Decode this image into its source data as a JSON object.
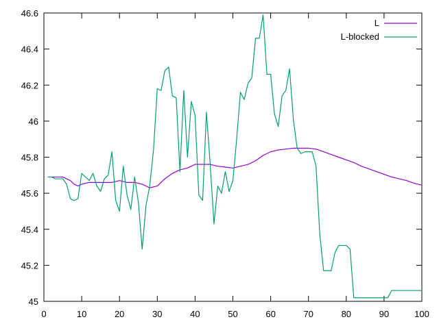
{
  "chart_data": {
    "type": "line",
    "title": "",
    "xlabel": "",
    "ylabel": "",
    "xlim": [
      0,
      100
    ],
    "ylim": [
      45,
      46.6
    ],
    "xticks": [
      0,
      10,
      20,
      30,
      40,
      50,
      60,
      70,
      80,
      90,
      100
    ],
    "yticks": [
      45,
      45.2,
      45.4,
      45.6,
      45.8,
      46,
      46.2,
      46.4,
      46.6
    ],
    "grid": false,
    "legend_position": "top-right",
    "series": [
      {
        "name": "L",
        "color": "#9400d3",
        "x": [
          1,
          2,
          3,
          4,
          5,
          6,
          7,
          8,
          9,
          10,
          12,
          14,
          16,
          18,
          20,
          22,
          24,
          26,
          28,
          30,
          32,
          34,
          36,
          38,
          40,
          42,
          44,
          46,
          48,
          50,
          52,
          54,
          56,
          58,
          60,
          62,
          64,
          66,
          68,
          70,
          72,
          74,
          76,
          78,
          80,
          82,
          84,
          86,
          88,
          90,
          92,
          94,
          96,
          98,
          100
        ],
        "y": [
          45.69,
          45.69,
          45.69,
          45.69,
          45.69,
          45.68,
          45.67,
          45.65,
          45.64,
          45.65,
          45.66,
          45.66,
          45.66,
          45.66,
          45.67,
          45.66,
          45.66,
          45.65,
          45.63,
          45.64,
          45.68,
          45.71,
          45.73,
          45.74,
          45.76,
          45.76,
          45.76,
          45.75,
          45.745,
          45.74,
          45.75,
          45.76,
          45.78,
          45.81,
          45.83,
          45.84,
          45.845,
          45.85,
          45.85,
          45.85,
          45.845,
          45.83,
          45.815,
          45.8,
          45.785,
          45.77,
          45.75,
          45.735,
          45.72,
          45.705,
          45.69,
          45.68,
          45.67,
          45.655,
          45.645
        ]
      },
      {
        "name": "L-blocked",
        "color": "#009e73",
        "x": [
          1,
          2,
          3,
          4,
          5,
          6,
          7,
          8,
          9,
          10,
          11,
          12,
          13,
          14,
          15,
          16,
          17,
          18,
          19,
          20,
          21,
          22,
          23,
          24,
          25,
          26,
          27,
          28,
          29,
          30,
          31,
          32,
          33,
          34,
          35,
          36,
          37,
          38,
          39,
          40,
          41,
          42,
          43,
          44,
          45,
          46,
          47,
          48,
          49,
          50,
          51,
          52,
          53,
          54,
          55,
          56,
          57,
          58,
          59,
          60,
          61,
          62,
          63,
          64,
          65,
          66,
          67,
          68,
          69,
          70,
          71,
          72,
          73,
          74,
          75,
          76,
          77,
          78,
          79,
          80,
          81,
          82,
          83,
          84,
          85,
          86,
          87,
          88,
          89,
          90,
          91,
          92,
          93,
          94,
          95,
          96,
          97,
          98,
          99,
          100
        ],
        "y": [
          45.69,
          45.69,
          45.68,
          45.68,
          45.68,
          45.65,
          45.57,
          45.56,
          45.57,
          45.71,
          45.69,
          45.67,
          45.71,
          45.64,
          45.61,
          45.68,
          45.7,
          45.83,
          45.56,
          45.5,
          45.75,
          45.59,
          45.51,
          45.69,
          45.55,
          45.29,
          45.53,
          45.64,
          45.84,
          46.18,
          46.17,
          46.28,
          46.3,
          46.14,
          46.13,
          45.72,
          46.17,
          45.8,
          46.11,
          46.03,
          45.59,
          45.56,
          46.05,
          45.76,
          45.43,
          45.64,
          45.6,
          45.72,
          45.61,
          45.67,
          45.9,
          46.16,
          46.12,
          46.21,
          46.24,
          46.46,
          46.46,
          46.59,
          46.26,
          46.26,
          46.04,
          45.97,
          46.14,
          46.17,
          46.29,
          46.01,
          45.85,
          45.82,
          45.83,
          45.83,
          45.83,
          45.75,
          45.37,
          45.17,
          45.17,
          45.17,
          45.27,
          45.31,
          45.31,
          45.31,
          45.29,
          45.02,
          45.02,
          45.02,
          45.02,
          45.02,
          45.02,
          45.02,
          45.02,
          45.02,
          45.02,
          45.06,
          45.06,
          45.06,
          45.06,
          45.06,
          45.06,
          45.06,
          45.06,
          45.06
        ]
      }
    ]
  }
}
